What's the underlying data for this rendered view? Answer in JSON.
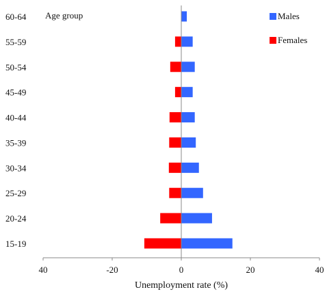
{
  "chart_data": {
    "type": "bar",
    "orientation": "horizontal",
    "categories": [
      "15-19",
      "20-24",
      "25-29",
      "30-34",
      "35-39",
      "40-44",
      "45-49",
      "50-54",
      "55-59",
      "60-64"
    ],
    "series": [
      {
        "name": "Males",
        "color": "#3366ff",
        "values": [
          14.8,
          8.9,
          6.3,
          5.1,
          4.2,
          3.9,
          3.3,
          3.9,
          3.3,
          1.6
        ]
      },
      {
        "name": "Females",
        "color": "#ff0000",
        "values": [
          -10.7,
          -6.1,
          -3.5,
          -3.6,
          -3.5,
          -3.4,
          -1.8,
          -3.2,
          -1.8,
          0
        ]
      }
    ],
    "xlabel": "Unemployment rate (%)",
    "annotation": "Age group",
    "xlim": [
      -40,
      40
    ],
    "xticks": [
      40,
      -20,
      0,
      20,
      40
    ],
    "grid": false,
    "legend_position": "top-right"
  }
}
